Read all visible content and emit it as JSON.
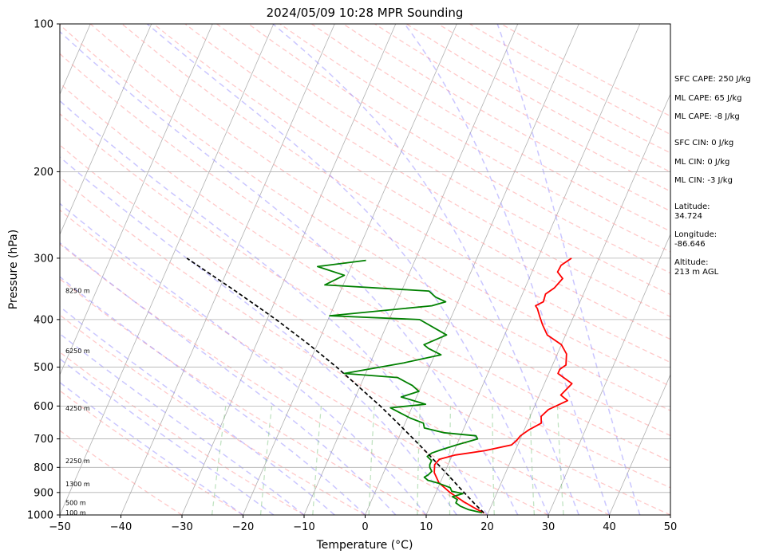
{
  "chart_data": {
    "type": "line",
    "title": "2024/05/09 10:28 MPR Sounding",
    "xlabel": "Temperature (°C)",
    "ylabel": "Pressure (hPa)",
    "xlim": [
      -50,
      50
    ],
    "ylim": [
      1000,
      100
    ],
    "y_scale": "log",
    "skew": "skew-T log-p",
    "grid": true,
    "x_ticks": [
      "−50",
      "−40",
      "−30",
      "−20",
      "−10",
      "0",
      "10",
      "20",
      "30",
      "40",
      "50"
    ],
    "y_ticks": [
      "100",
      "200",
      "300",
      "400",
      "500",
      "600",
      "700",
      "800",
      "900",
      "1000"
    ],
    "height_labels": [
      "100 m",
      "500 m",
      "1300 m",
      "2250 m",
      "4250 m",
      "6250 m",
      "8250 m"
    ],
    "height_label_pressures": [
      988,
      943,
      864,
      776,
      606,
      463,
      349
    ],
    "annotations": [
      "SFC CAPE: 250 J/kg",
      "ML CAPE: 65 J/kg",
      "ML CAPE: -8 J/kg",
      "SFC CIN: 0 J/kg",
      "ML CIN: 0 J/kg",
      "ML CIN: -3 J/kg"
    ],
    "station": {
      "latitude_label": "Latitude:",
      "latitude": "34.724",
      "longitude_label": "Longitude:",
      "longitude": "-86.646",
      "altitude_label": "Altitude:",
      "altitude": "213 m AGL"
    },
    "series": [
      {
        "role": "temperature",
        "color": "#ff0000",
        "points": [
          [
            990,
            19.3
          ],
          [
            970,
            17.6
          ],
          [
            940,
            15.2
          ],
          [
            900,
            12.3
          ],
          [
            860,
            9.8
          ],
          [
            820,
            8.3
          ],
          [
            790,
            7.8
          ],
          [
            770,
            8.2
          ],
          [
            755,
            10.5
          ],
          [
            740,
            15.0
          ],
          [
            720,
            19.0
          ],
          [
            705,
            19.5
          ],
          [
            690,
            19.8
          ],
          [
            670,
            20.8
          ],
          [
            650,
            22.3
          ],
          [
            630,
            21.8
          ],
          [
            610,
            22.5
          ],
          [
            600,
            23.5
          ],
          [
            585,
            25.0
          ],
          [
            570,
            23.5
          ],
          [
            555,
            24.0
          ],
          [
            540,
            24.5
          ],
          [
            515,
            21.5
          ],
          [
            505,
            21.5
          ],
          [
            495,
            22.2
          ],
          [
            470,
            21.5
          ],
          [
            450,
            20.0
          ],
          [
            430,
            17.0
          ],
          [
            410,
            15.5
          ],
          [
            395,
            14.5
          ],
          [
            380,
            13.5
          ],
          [
            375,
            13.0
          ],
          [
            368,
            14.0
          ],
          [
            355,
            13.8
          ],
          [
            345,
            14.8
          ],
          [
            330,
            15.5
          ],
          [
            320,
            14.2
          ],
          [
            310,
            14.3
          ],
          [
            300,
            15.5
          ]
        ]
      },
      {
        "role": "dewpoint",
        "color": "#008000",
        "points": [
          [
            990,
            19.0
          ],
          [
            975,
            16.5
          ],
          [
            960,
            15.0
          ],
          [
            945,
            14.0
          ],
          [
            930,
            14.0
          ],
          [
            918,
            13.0
          ],
          [
            905,
            14.5
          ],
          [
            895,
            12.5
          ],
          [
            880,
            12.0
          ],
          [
            862,
            9.8
          ],
          [
            850,
            7.8
          ],
          [
            838,
            7.0
          ],
          [
            828,
            7.5
          ],
          [
            815,
            7.8
          ],
          [
            800,
            7.2
          ],
          [
            790,
            7.0
          ],
          [
            775,
            7.0
          ],
          [
            760,
            6.0
          ],
          [
            748,
            6.5
          ],
          [
            735,
            8.0
          ],
          [
            720,
            10.0
          ],
          [
            700,
            13.0
          ],
          [
            690,
            12.5
          ],
          [
            680,
            7.0
          ],
          [
            665,
            3.5
          ],
          [
            650,
            3.0
          ],
          [
            635,
            0.5
          ],
          [
            620,
            -1.5
          ],
          [
            605,
            -3.5
          ],
          [
            595,
            2.0
          ],
          [
            575,
            -2.5
          ],
          [
            560,
            0.0
          ],
          [
            545,
            -1.5
          ],
          [
            525,
            -4.5
          ],
          [
            515,
            -13.5
          ],
          [
            490,
            -4.5
          ],
          [
            472,
            1.0
          ],
          [
            458,
            -1.5
          ],
          [
            450,
            -2.5
          ],
          [
            430,
            0.5
          ],
          [
            400,
            -5.0
          ],
          [
            393,
            -20.0
          ],
          [
            375,
            -4.0
          ],
          [
            368,
            -2.0
          ],
          [
            360,
            -4.0
          ],
          [
            350,
            -5.5
          ],
          [
            340,
            -23.0
          ],
          [
            325,
            -20.5
          ],
          [
            312,
            -25.5
          ],
          [
            303,
            -18.0
          ]
        ]
      },
      {
        "role": "parcel",
        "color": "#000000",
        "dashed": true,
        "points": [
          [
            990,
            19.3
          ],
          [
            950,
            17.2
          ],
          [
            900,
            14.6
          ],
          [
            850,
            11.9
          ],
          [
            800,
            9.0
          ],
          [
            750,
            5.9
          ],
          [
            700,
            2.5
          ],
          [
            650,
            -1.2
          ],
          [
            600,
            -5.3
          ],
          [
            550,
            -10.0
          ],
          [
            500,
            -15.2
          ],
          [
            450,
            -21.3
          ],
          [
            400,
            -28.5
          ],
          [
            350,
            -37.2
          ],
          [
            300,
            -47.5
          ]
        ]
      }
    ]
  }
}
